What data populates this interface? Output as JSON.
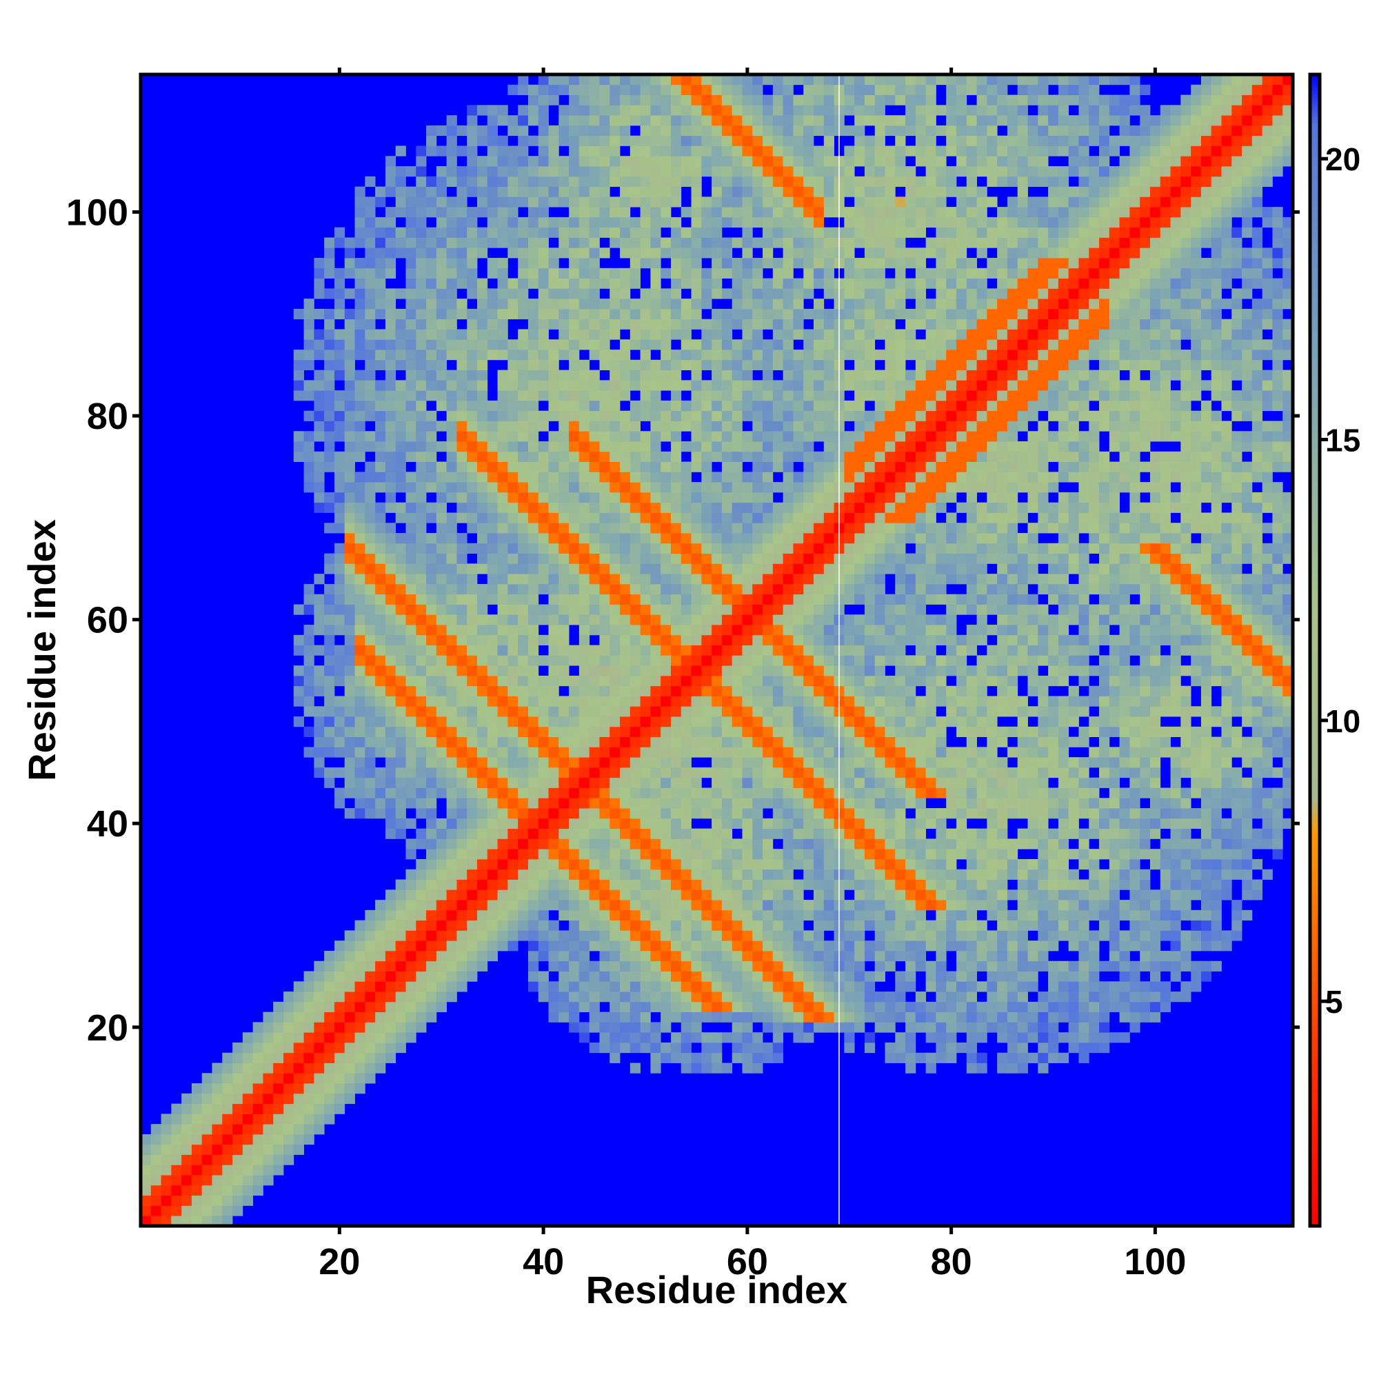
{
  "chart_data": {
    "type": "heatmap",
    "title": "",
    "xlabel": "Residue index",
    "ylabel": "Residue index",
    "n_residues": 113,
    "xlim": [
      1,
      113
    ],
    "ylim": [
      1,
      113
    ],
    "x_ticks": [
      20,
      40,
      60,
      80,
      100
    ],
    "y_ticks": [
      20,
      40,
      60,
      80,
      100
    ],
    "colorbar": {
      "ticks": [
        5,
        10,
        15,
        20
      ],
      "range": [
        1,
        21.5
      ],
      "stops": [
        {
          "value": 1.0,
          "color": "#ff0000"
        },
        {
          "value": 4.0,
          "color": "#ff3300"
        },
        {
          "value": 6.0,
          "color": "#ff6600"
        },
        {
          "value": 8.0,
          "color": "#ff9900"
        },
        {
          "value": 8.6,
          "color": "#a8b890"
        },
        {
          "value": 12.0,
          "color": "#a8c48a"
        },
        {
          "value": 16.0,
          "color": "#7fa6b3"
        },
        {
          "value": 19.0,
          "color": "#6688cc"
        },
        {
          "value": 20.6,
          "color": "#5577dd"
        },
        {
          "value": 21.5,
          "color": "#0000ff"
        }
      ]
    },
    "background_color": "#0000ff",
    "highlight_line_x": 68.5,
    "features": [
      {
        "kind": "diagonal",
        "description": "self contacts"
      },
      {
        "kind": "antiparallel",
        "pairs": [
          [
            33,
            55
          ],
          [
            44,
            66
          ],
          [
            55,
            66
          ],
          [
            45,
            34
          ]
        ]
      },
      {
        "kind": "parallel",
        "from": [
          71,
          77
        ],
        "to": [
          88,
          94
        ]
      }
    ]
  }
}
